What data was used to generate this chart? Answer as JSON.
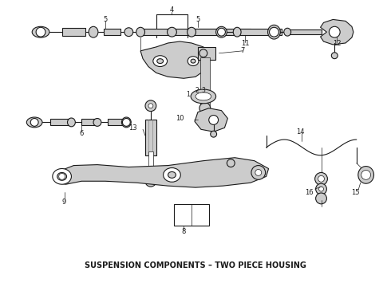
{
  "title": "SUSPENSION COMPONENTS – TWO PIECE HOUSING",
  "title_fontsize": 7,
  "background_color": "#ffffff",
  "line_color": "#1a1a1a",
  "fig_width": 4.9,
  "fig_height": 3.6,
  "dpi": 100
}
